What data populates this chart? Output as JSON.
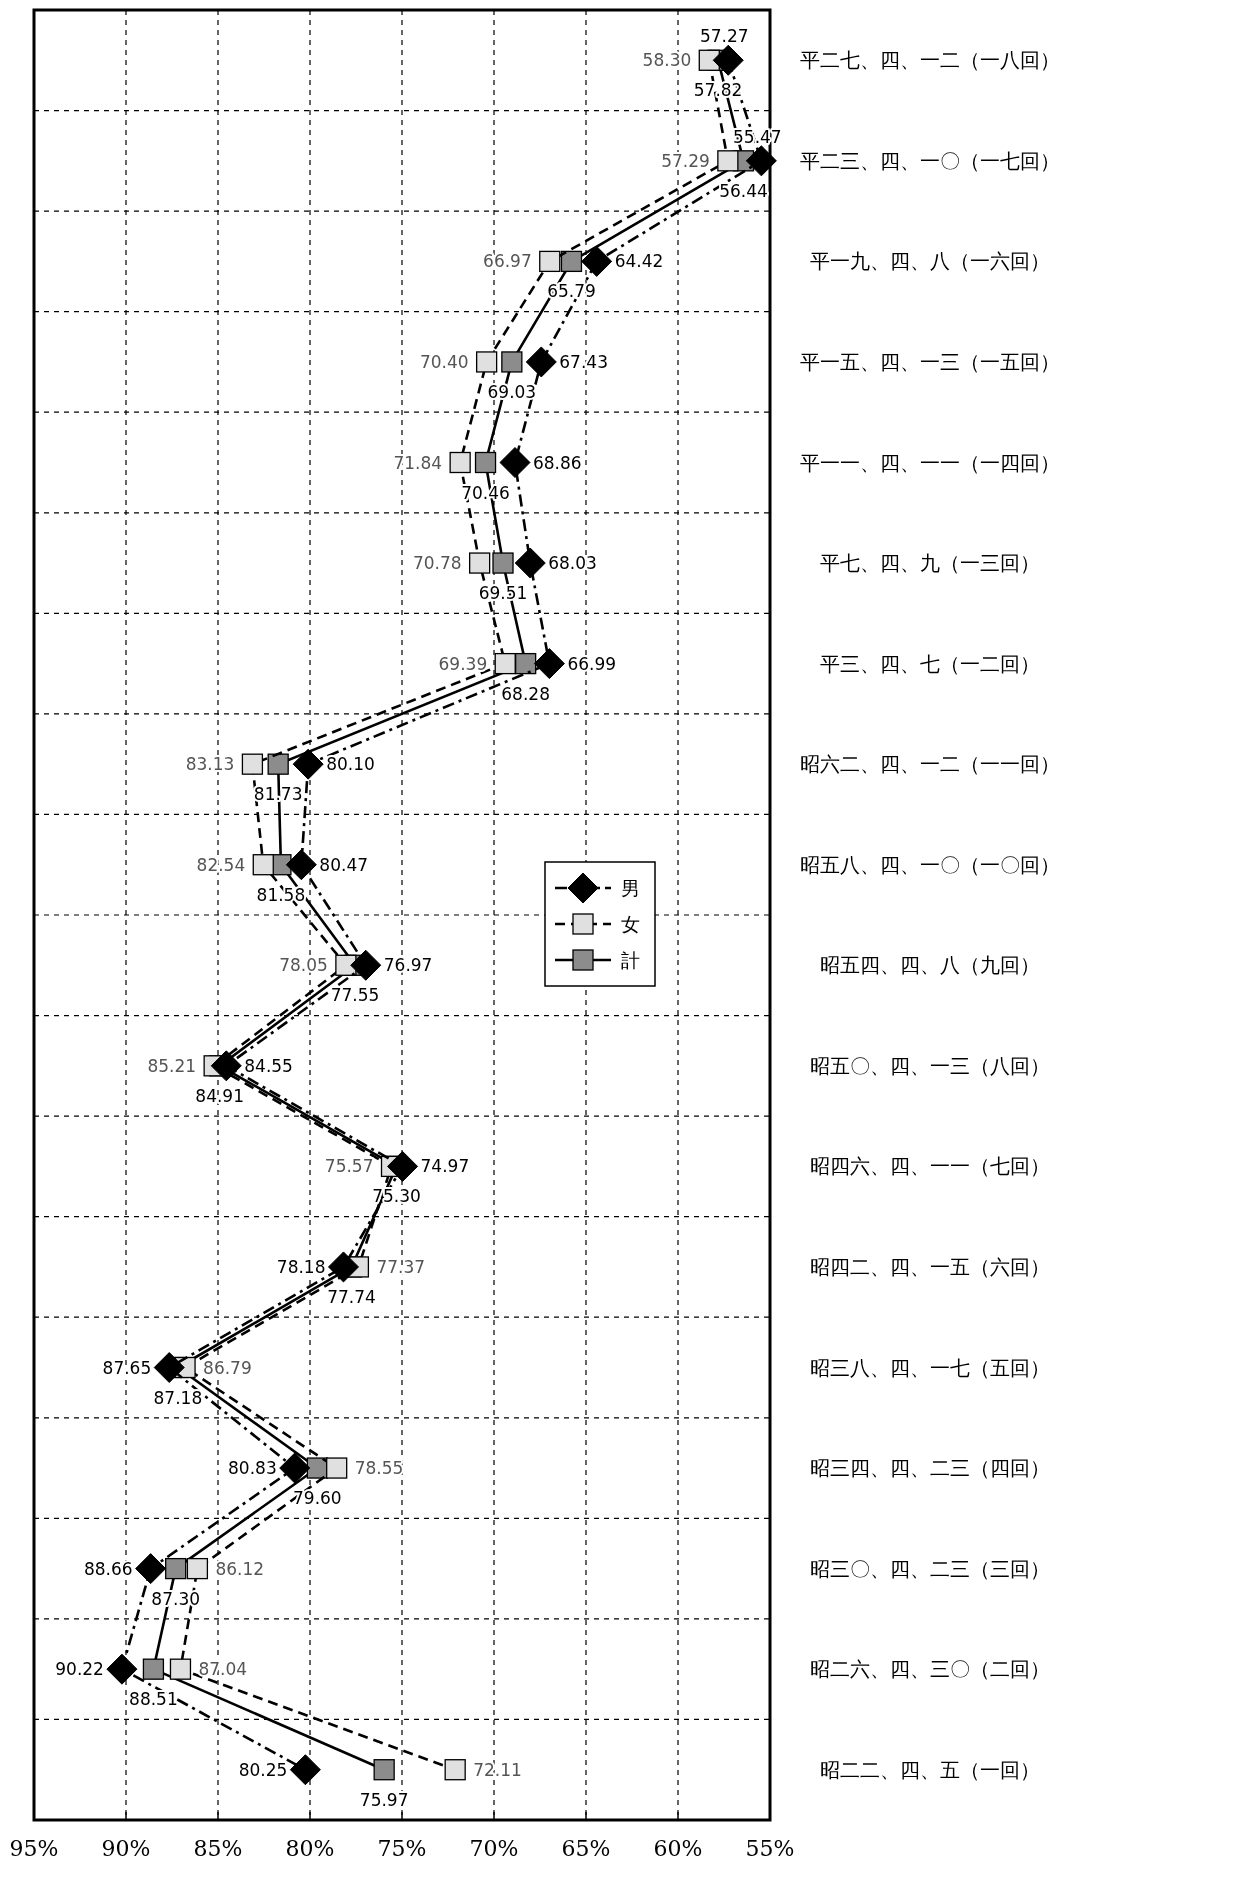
{
  "chart_data": {
    "type": "line",
    "orientation": "horizontal",
    "categories": [
      "平二七、四、一二（一八回）",
      "平二三、四、一〇（一七回）",
      "平一九、四、八（一六回）",
      "平一五、四、一三（一五回）",
      "平一一、四、一一（一四回）",
      "平七、四、九（一三回）",
      "平三、四、七（一二回）",
      "昭六二、四、一二（一一回）",
      "昭五八、四、一〇（一〇回）",
      "昭五四、四、八（九回）",
      "昭五〇、四、一三（八回）",
      "昭四六、四、一一（七回）",
      "昭四二、四、一五（六回）",
      "昭三八、四、一七（五回）",
      "昭三四、四、二三（四回）",
      "昭三〇、四、二三（三回）",
      "昭二六、四、三〇（二回）",
      "昭二二、四、五（一回）"
    ],
    "series": [
      {
        "name": "男",
        "color": "#000000",
        "marker": "diamond",
        "line_style": "dashdot",
        "values": [
          57.27,
          55.47,
          64.42,
          67.43,
          68.86,
          68.03,
          66.99,
          80.1,
          80.47,
          76.97,
          84.55,
          74.97,
          78.18,
          87.65,
          80.83,
          88.66,
          90.22,
          80.25
        ],
        "value_labels": [
          "57.27",
          "55.47",
          "64.42",
          "67.43",
          "68.86",
          "68.03",
          "66.99",
          "80.10",
          "80.47",
          "76.97",
          "84.55",
          "74.97",
          "78.18",
          "87.65",
          "80.83",
          "88.66",
          "90.22",
          "80.25"
        ]
      },
      {
        "name": "女",
        "color": "#e0e0e0",
        "marker": "square",
        "line_style": "dashed",
        "values": [
          58.3,
          57.29,
          66.97,
          70.4,
          71.84,
          70.78,
          69.39,
          83.13,
          82.54,
          78.05,
          85.21,
          75.57,
          77.37,
          86.79,
          78.55,
          86.12,
          87.04,
          72.11
        ],
        "value_labels": [
          "58.30",
          "57.29",
          "66.97",
          "70.40",
          "71.84",
          "70.78",
          "69.39",
          "83.13",
          "82.54",
          "78.05",
          "85.21",
          "75.57",
          "77.37",
          "86.79",
          "78.55",
          "86.12",
          "87.04",
          "72.11"
        ]
      },
      {
        "name": "計",
        "color": "#8c8c8c",
        "marker": "square",
        "line_style": "solid",
        "values": [
          57.82,
          56.44,
          65.79,
          69.03,
          70.46,
          69.51,
          68.28,
          81.73,
          81.58,
          77.55,
          84.91,
          75.3,
          77.74,
          87.18,
          79.6,
          87.3,
          88.51,
          75.97
        ],
        "value_labels": [
          "57.82",
          "56.44",
          "65.79",
          "69.03",
          "70.46",
          "69.51",
          "68.28",
          "81.73",
          "81.58",
          "77.55",
          "84.91",
          "75.30",
          "77.74",
          "87.18",
          "79.60",
          "87.30",
          "88.51",
          "75.97"
        ]
      }
    ],
    "xlim": [
      95,
      55
    ],
    "xticks": [
      {
        "value": 95,
        "label": "95%"
      },
      {
        "value": 90,
        "label": "90%"
      },
      {
        "value": 85,
        "label": "85%"
      },
      {
        "value": 80,
        "label": "80%"
      },
      {
        "value": 75,
        "label": "75%"
      },
      {
        "value": 70,
        "label": "70%"
      },
      {
        "value": 65,
        "label": "65%"
      },
      {
        "value": 60,
        "label": "60%"
      },
      {
        "value": 55,
        "label": "55%"
      }
    ],
    "grid": true,
    "legend": "bottom"
  }
}
